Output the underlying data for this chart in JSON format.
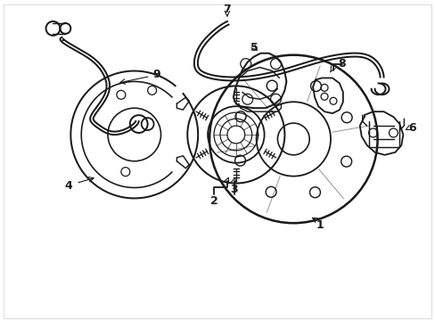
{
  "background_color": "#ffffff",
  "line_color": "#1a1a1a",
  "line_width": 1.3,
  "fig_width": 4.89,
  "fig_height": 3.6,
  "dpi": 100
}
